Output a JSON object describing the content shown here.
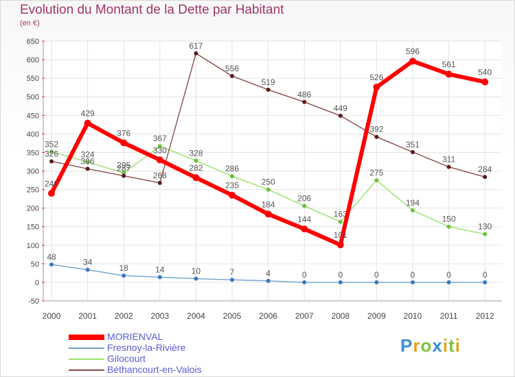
{
  "header": {
    "title": "Evolution du Montant de la Dette par Habitant",
    "subtitle": "(en €)"
  },
  "chart_data": {
    "type": "line",
    "title": "Evolution du Montant de la Dette par Habitant",
    "ylabel": "(en €)",
    "xlabel": "",
    "x": [
      "2000",
      "2001",
      "2002",
      "2003",
      "2004",
      "2005",
      "2006",
      "2007",
      "2008",
      "2009",
      "2010",
      "2011",
      "2012"
    ],
    "ylim": [
      -50,
      650
    ],
    "yticks": [
      -50,
      0,
      50,
      100,
      150,
      200,
      250,
      300,
      350,
      400,
      450,
      500,
      550,
      600,
      650
    ],
    "grid": true,
    "legend_position": "bottom-left",
    "series": [
      {
        "name": "MORIENVAL",
        "color": "#ff0000",
        "values": [
          240,
          429,
          376,
          330,
          282,
          235,
          184,
          144,
          101,
          526,
          596,
          561,
          540
        ]
      },
      {
        "name": "Fresnoy-la-Rivière",
        "color": "#6fa0cc",
        "values": [
          48,
          34,
          18,
          14,
          10,
          7,
          4,
          0,
          0,
          0,
          0,
          0,
          0
        ]
      },
      {
        "name": "Gilocourt",
        "color": "#99e066",
        "values": [
          352,
          324,
          295,
          367,
          328,
          286,
          250,
          206,
          163,
          275,
          194,
          150,
          130
        ]
      },
      {
        "name": "Béthancourt-en-Valois",
        "color": "#8a4a4a",
        "values": [
          326,
          306,
          287,
          268,
          617,
          556,
          519,
          486,
          449,
          392,
          351,
          311,
          284
        ]
      }
    ]
  },
  "logo": {
    "letters": [
      {
        "ch": "P",
        "color": "#3a8fd0"
      },
      {
        "ch": "r",
        "color": "#e3a21a"
      },
      {
        "ch": "o",
        "color": "#7cc242"
      },
      {
        "ch": "x",
        "color": "#3a8fd0"
      },
      {
        "ch": "i",
        "color": "#e3a21a"
      },
      {
        "ch": "t",
        "color": "#7cc242"
      },
      {
        "ch": "i",
        "color": "#e3a21a"
      }
    ]
  }
}
